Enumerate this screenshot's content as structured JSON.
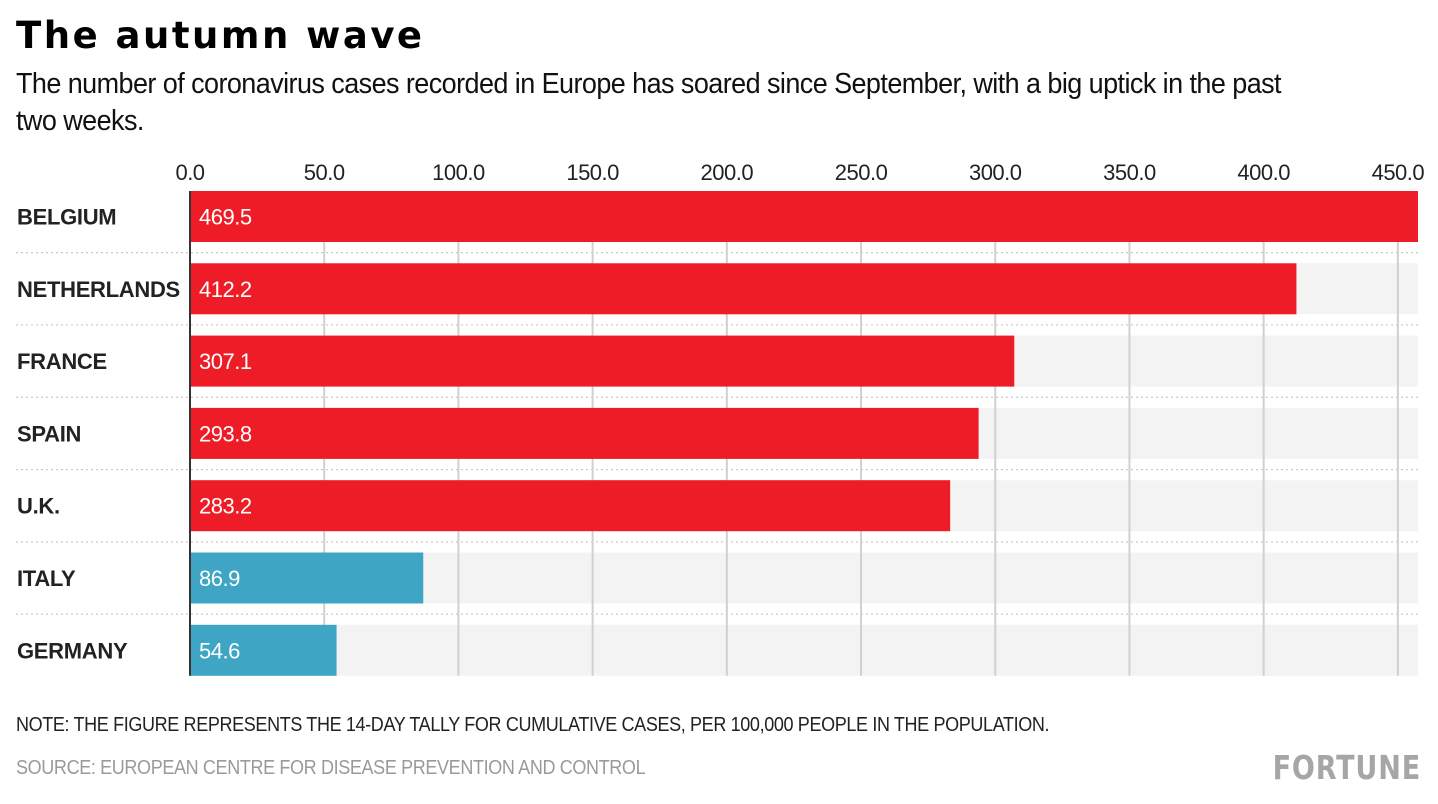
{
  "header": {
    "title": "The autumn wave",
    "subtitle": "The number of coronavirus cases recorded in Europe has soared since September, with a big uptick in the past two weeks."
  },
  "footer": {
    "note": "NOTE: THE FIGURE REPRESENTS THE 14-DAY TALLY FOR CUMULATIVE CASES, PER 100,000 PEOPLE IN THE POPULATION.",
    "source": "SOURCE: EUROPEAN CENTRE FOR DISEASE PREVENTION AND CONTROL",
    "brand": "FORTUNE"
  },
  "colors": {
    "highlight": "#ed1c27",
    "secondary": "#3fa5c4",
    "track": "#f3f3f3",
    "grid": "#d0d0d0"
  },
  "chart_data": {
    "type": "bar",
    "orientation": "horizontal",
    "title": "The autumn wave",
    "xlabel": "",
    "ylabel": "",
    "categories": [
      "BELGIUM",
      "NETHERLANDS",
      "FRANCE",
      "SPAIN",
      "U.K.",
      "ITALY",
      "GERMANY"
    ],
    "values": [
      469.5,
      412.2,
      307.1,
      293.8,
      283.2,
      86.9,
      54.6
    ],
    "value_labels": [
      "469.5",
      "412.2",
      "307.1",
      "293.8",
      "283.2",
      "86.9",
      "54.6"
    ],
    "bar_groups": [
      "highlight",
      "highlight",
      "highlight",
      "highlight",
      "highlight",
      "secondary",
      "secondary"
    ],
    "xlim": [
      0,
      457.5
    ],
    "xticks": [
      0,
      50,
      100,
      150,
      200,
      250,
      300,
      350,
      400,
      450
    ],
    "xtick_labels": [
      "0.0",
      "50.0",
      "100.0",
      "150.0",
      "200.0",
      "250.0",
      "300.0",
      "350.0",
      "400.0",
      "450.0"
    ],
    "x_axis_position": "top",
    "grid": true,
    "legend": "none"
  }
}
